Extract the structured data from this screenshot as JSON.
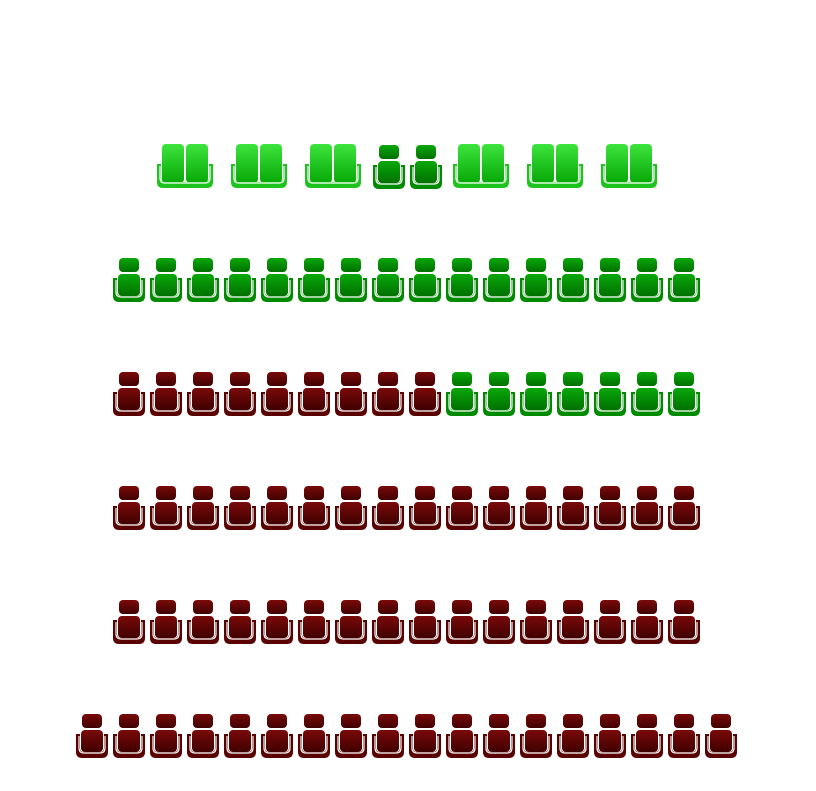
{
  "colors": {
    "available": "#1ec41e",
    "available_dark": "#008a00",
    "sold": "#5a0202",
    "inner_line": "#ffffff"
  },
  "rows": [
    {
      "type": "mixed",
      "seats": [
        {
          "kind": "couple",
          "status": "available"
        },
        {
          "kind": "couple",
          "status": "available"
        },
        {
          "kind": "couple",
          "status": "available"
        },
        {
          "kind": "single",
          "status": "available_dark"
        },
        {
          "kind": "single",
          "status": "available_dark"
        },
        {
          "kind": "couple",
          "status": "available"
        },
        {
          "kind": "couple",
          "status": "available"
        },
        {
          "kind": "couple",
          "status": "available"
        }
      ]
    },
    {
      "type": "single",
      "statuses": [
        "available_dark",
        "available_dark",
        "available_dark",
        "available_dark",
        "available_dark",
        "available_dark",
        "available_dark",
        "available_dark",
        "available_dark",
        "available_dark",
        "available_dark",
        "available_dark",
        "available_dark",
        "available_dark",
        "available_dark",
        "available_dark"
      ]
    },
    {
      "type": "single",
      "statuses": [
        "sold",
        "sold",
        "sold",
        "sold",
        "sold",
        "sold",
        "sold",
        "sold",
        "sold",
        "available_dark",
        "available_dark",
        "available_dark",
        "available_dark",
        "available_dark",
        "available_dark",
        "available_dark"
      ]
    },
    {
      "type": "single",
      "statuses": [
        "sold",
        "sold",
        "sold",
        "sold",
        "sold",
        "sold",
        "sold",
        "sold",
        "sold",
        "sold",
        "sold",
        "sold",
        "sold",
        "sold",
        "sold",
        "sold"
      ]
    },
    {
      "type": "single",
      "statuses": [
        "sold",
        "sold",
        "sold",
        "sold",
        "sold",
        "sold",
        "sold",
        "sold",
        "sold",
        "sold",
        "sold",
        "sold",
        "sold",
        "sold",
        "sold",
        "sold"
      ]
    },
    {
      "type": "single",
      "statuses": [
        "sold",
        "sold",
        "sold",
        "sold",
        "sold",
        "sold",
        "sold",
        "sold",
        "sold",
        "sold",
        "sold",
        "sold",
        "sold",
        "sold",
        "sold",
        "sold",
        "sold",
        "sold"
      ]
    }
  ]
}
